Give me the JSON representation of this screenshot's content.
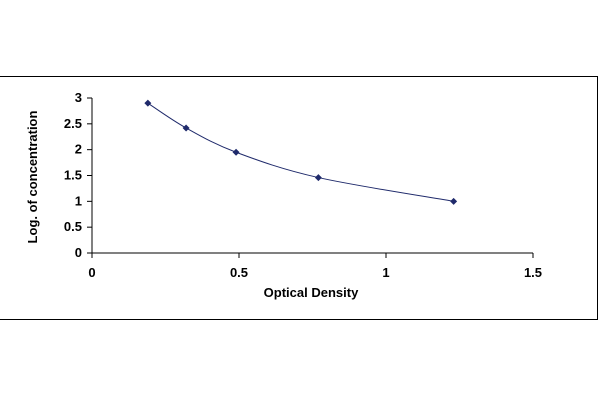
{
  "chart_data": {
    "type": "scatter",
    "title": "",
    "xlabel": "Optical Density",
    "ylabel": "Log. of concentration",
    "xlim": [
      0,
      1.5
    ],
    "ylim": [
      0,
      3
    ],
    "xticks": [
      "0",
      "0.5",
      "1",
      "1.5"
    ],
    "yticks": [
      "0",
      "0.5",
      "1",
      "1.5",
      "2",
      "2.5",
      "3"
    ],
    "grid": false,
    "legend": "none",
    "series": [
      {
        "x": [
          0.19,
          0.32,
          0.49,
          0.77,
          1.23
        ],
        "y": [
          2.9,
          2.42,
          1.95,
          1.46,
          1.0
        ],
        "marker": "diamond",
        "line": "smooth",
        "color": "#1f2a6b"
      }
    ]
  }
}
